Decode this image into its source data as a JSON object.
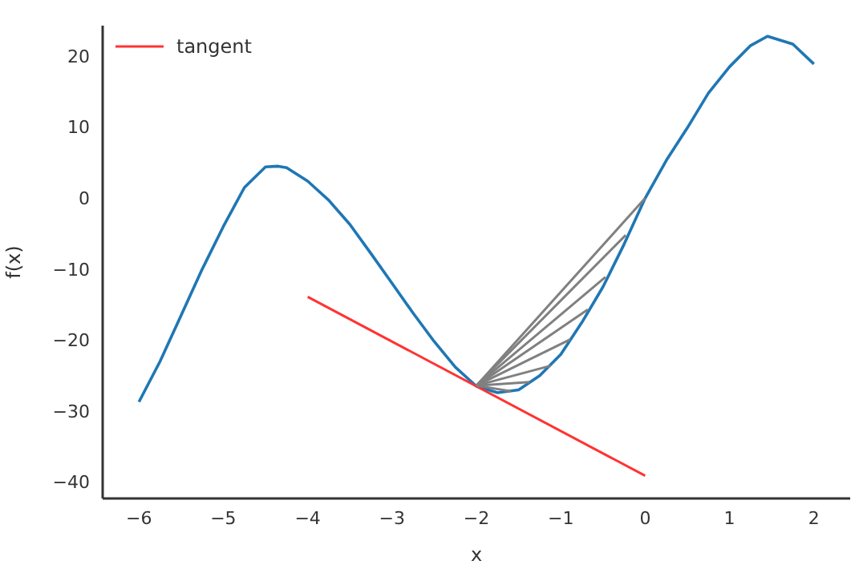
{
  "chart_data": {
    "type": "line",
    "xlabel": "x",
    "ylabel": "f(x)",
    "xlim": [
      -6.43,
      2.43
    ],
    "ylim": [
      -42.3,
      24.3
    ],
    "xticks": [
      -6,
      -5,
      -4,
      -3,
      -2,
      -1,
      0,
      1,
      2
    ],
    "yticks": [
      -40,
      -30,
      -20,
      -10,
      0,
      10,
      20
    ],
    "grid": false,
    "legend": "top left",
    "series": [
      {
        "color": "#1f77b4",
        "x": [
          -6,
          -5.75,
          -5.5,
          -5.25,
          -5,
          -4.75,
          -4.5,
          -4.35,
          -4.25,
          -4,
          -3.75,
          -3.5,
          -3.25,
          -3,
          -2.75,
          -2.5,
          -2.25,
          -2,
          -1.75,
          -1.5,
          -1.25,
          -1,
          -0.75,
          -0.5,
          -0.25,
          0,
          0.25,
          0.5,
          0.75,
          1,
          1.25,
          1.45,
          1.75,
          2
        ],
        "values": [
          -28.7,
          -23,
          -16.5,
          -10,
          -4,
          1.5,
          4.4,
          4.5,
          4.3,
          2.4,
          -0.3,
          -3.7,
          -7.8,
          -12,
          -16.2,
          -20.2,
          -23.8,
          -26.5,
          -27.4,
          -27,
          -25,
          -22,
          -17.5,
          -12.5,
          -6.5,
          0,
          5.3,
          9.9,
          14.8,
          18.5,
          21.5,
          22.8,
          21.7,
          18.9
        ]
      },
      {
        "name": "tangent",
        "color": "#ff3333",
        "x": [
          -4,
          0
        ],
        "values": [
          -13.9,
          -39.1
        ]
      },
      {
        "color": "#808080",
        "x": [
          -2,
          0
        ],
        "values": [
          -26.4,
          0
        ]
      },
      {
        "color": "#808080",
        "x": [
          -2,
          -0.23
        ],
        "values": [
          -26.4,
          -5.2
        ]
      },
      {
        "color": "#808080",
        "x": [
          -2,
          -0.47
        ],
        "values": [
          -26.4,
          -11.1
        ]
      },
      {
        "color": "#808080",
        "x": [
          -2,
          -0.68
        ],
        "values": [
          -26.4,
          -15.7
        ]
      },
      {
        "color": "#808080",
        "x": [
          -2,
          -0.89
        ],
        "values": [
          -26.4,
          -19.9
        ]
      },
      {
        "color": "#808080",
        "x": [
          -2,
          -1.12
        ],
        "values": [
          -26.4,
          -23.6
        ]
      },
      {
        "color": "#808080",
        "x": [
          -2,
          -1.37
        ],
        "values": [
          -26.4,
          -25.9
        ]
      },
      {
        "color": "#808080",
        "x": [
          -2,
          -1.59
        ],
        "values": [
          -26.4,
          -27.2
        ]
      }
    ]
  }
}
